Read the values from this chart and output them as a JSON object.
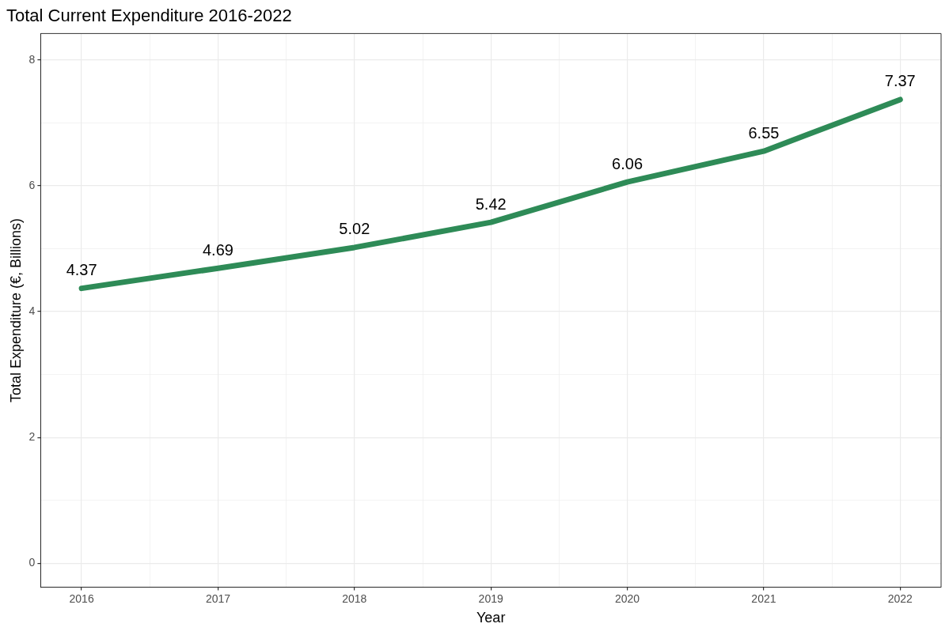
{
  "chart_data": {
    "type": "line",
    "title": "Total Current Expenditure 2016-2022",
    "xlabel": "Year",
    "ylabel": "Total Expenditure (€, Billions)",
    "x": [
      2016,
      2017,
      2018,
      2019,
      2020,
      2021,
      2022
    ],
    "series": [
      {
        "color": "#2e8b57",
        "values": [
          4.37,
          4.69,
          5.02,
          5.42,
          6.06,
          6.55,
          7.37
        ]
      }
    ],
    "xlim": [
      2015.7,
      2022.3
    ],
    "xticks": [
      2016,
      {
        "value": 2016.5,
        "label": null
      },
      2017,
      {
        "value": 2017.5,
        "label": null
      },
      2018,
      {
        "value": 2018.5,
        "label": null
      },
      2019,
      {
        "value": 2019.5,
        "label": null
      },
      2020,
      {
        "value": 2020.5,
        "label": null
      },
      2021,
      {
        "value": 2021.5,
        "label": null
      },
      2022
    ],
    "ylim": [
      -0.38,
      8.42
    ],
    "yticks": [
      0,
      {
        "value": 1,
        "label": null
      },
      2,
      {
        "value": 3,
        "label": null
      },
      4,
      {
        "value": 5,
        "label": null
      },
      6,
      {
        "value": 7,
        "label": null
      },
      8
    ],
    "grid": true,
    "legend": false,
    "marker": "none",
    "line_style": "solid",
    "data_labels": true
  }
}
